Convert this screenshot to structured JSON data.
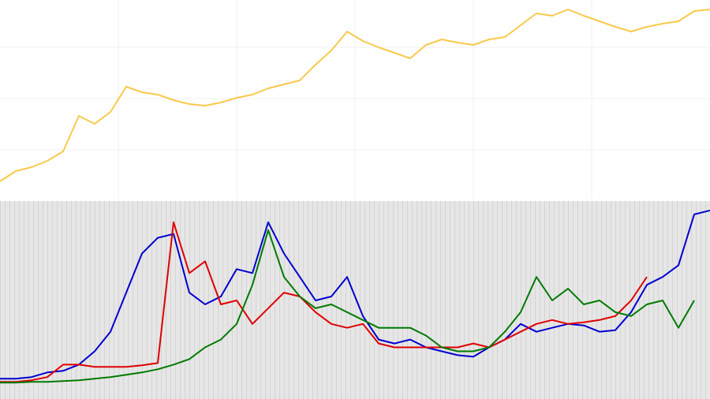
{
  "chart_data": [
    {
      "type": "line",
      "x": [
        0,
        20,
        40,
        60,
        80,
        100,
        120,
        140,
        160,
        180,
        200,
        220,
        240,
        260,
        280,
        300,
        320,
        340,
        360,
        380,
        400,
        420,
        440,
        460,
        480,
        500,
        520,
        540,
        560,
        580,
        600,
        620,
        640,
        660,
        680,
        700,
        720,
        740,
        760,
        780,
        800,
        820,
        840,
        860,
        880,
        900
      ],
      "xlim": [
        0,
        900
      ],
      "ylim": [
        0,
        250
      ],
      "series": [
        {
          "color": "#f8c94a",
          "values": [
            22,
            35,
            40,
            48,
            60,
            105,
            95,
            110,
            142,
            135,
            132,
            125,
            120,
            118,
            122,
            128,
            132,
            140,
            145,
            150,
            170,
            188,
            212,
            200,
            192,
            185,
            178,
            195,
            202,
            198,
            195,
            202,
            205,
            220,
            235,
            232,
            240,
            232,
            225,
            218,
            212,
            218,
            222,
            225,
            238,
            240
          ]
        }
      ]
    },
    {
      "type": "line",
      "x": [
        0,
        20,
        40,
        60,
        80,
        100,
        120,
        140,
        160,
        180,
        200,
        220,
        240,
        260,
        280,
        300,
        320,
        340,
        360,
        380,
        400,
        420,
        440,
        460,
        480,
        500,
        520,
        540,
        560,
        580,
        600,
        620,
        640,
        660,
        680,
        700,
        720,
        740,
        760,
        780,
        800,
        820,
        840,
        860,
        880,
        900
      ],
      "xlim": [
        0,
        900
      ],
      "ylim": [
        0,
        251
      ],
      "series": [
        {
          "color": "#0000d0",
          "values": [
            26,
            26,
            28,
            34,
            36,
            44,
            61,
            86,
            136,
            186,
            206,
            211,
            136,
            121,
            131,
            166,
            161,
            226,
            186,
            156,
            126,
            131,
            156,
            106,
            76,
            71,
            76,
            66,
            61,
            56,
            54,
            66,
            76,
            96,
            86,
            91,
            96,
            94,
            86,
            88,
            111,
            146,
            156,
            171,
            236,
            241
          ]
        },
        {
          "color": "#e00000",
          "values": [
            22,
            22,
            24,
            28,
            44,
            44,
            41,
            41,
            41,
            43,
            46,
            226,
            161,
            176,
            121,
            126,
            96,
            116,
            136,
            131,
            111,
            96,
            91,
            96,
            71,
            66,
            66,
            66,
            66,
            66,
            71,
            66,
            76,
            86,
            96,
            101,
            96,
            98,
            101,
            106,
            126,
            156,
            null,
            null,
            null,
            null
          ]
        },
        {
          "color": "#007a00",
          "values": [
            21,
            21,
            22,
            22,
            23,
            24,
            26,
            28,
            31,
            34,
            38,
            44,
            51,
            66,
            76,
            96,
            146,
            216,
            156,
            131,
            116,
            121,
            111,
            101,
            91,
            91,
            91,
            81,
            66,
            61,
            61,
            66,
            86,
            111,
            156,
            126,
            141,
            121,
            126,
            111,
            106,
            121,
            126,
            91,
            126,
            null
          ]
        }
      ]
    }
  ]
}
